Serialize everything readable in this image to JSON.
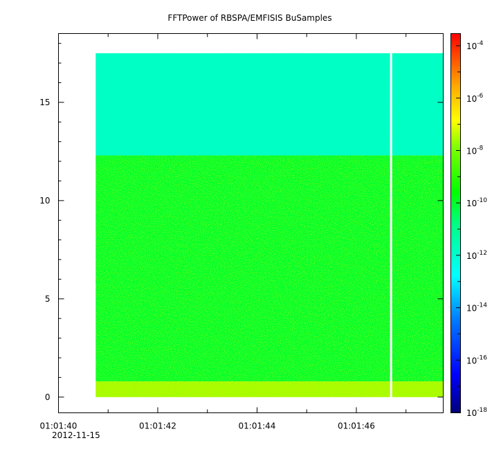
{
  "chart_data": {
    "type": "heatmap",
    "title": "FFTPower of RBSPA/EMFISIS  BuSamples",
    "xlabel": "",
    "ylabel": "",
    "x_ticks": [
      "01:01:40",
      "01:01:42",
      "01:01:44",
      "01:01:46"
    ],
    "x_date_label": "2012-11-15",
    "x_minor_ticks": [
      "01:01:41",
      "01:01:43",
      "01:01:45",
      "01:01:47"
    ],
    "x_range_seconds": [
      40.0,
      47.75
    ],
    "data_x_range_seconds": [
      40.75,
      47.75
    ],
    "gap_at_seconds": 46.7,
    "y_ticks": [
      0,
      5,
      10,
      15
    ],
    "ylim": [
      -0.8,
      18.5
    ],
    "data_y_range": [
      0,
      17.5
    ],
    "colorbar": {
      "scale": "log",
      "ticks": [
        {
          "base": "10",
          "exp": "-4",
          "value": 0.0001
        },
        {
          "base": "10",
          "exp": "-6",
          "value": 1e-06
        },
        {
          "base": "10",
          "exp": "-8",
          "value": 1e-08
        },
        {
          "base": "10",
          "exp": "-10",
          "value": 1e-10
        },
        {
          "base": "10",
          "exp": "-12",
          "value": 1e-12
        },
        {
          "base": "10",
          "exp": "-14",
          "value": 1e-14
        },
        {
          "base": "10",
          "exp": "-16",
          "value": 1e-16
        },
        {
          "base": "10",
          "exp": "-18",
          "value": 1e-18
        }
      ],
      "range": [
        1e-18,
        0.0003
      ]
    },
    "bands": [
      {
        "y": [
          0,
          0.8
        ],
        "level_log10": -7.6
      },
      {
        "y": [
          0.8,
          12.3
        ],
        "level_log10": -10.0
      },
      {
        "y": [
          12.3,
          17.5
        ],
        "level_log10": -11.9
      }
    ],
    "grid": false
  }
}
